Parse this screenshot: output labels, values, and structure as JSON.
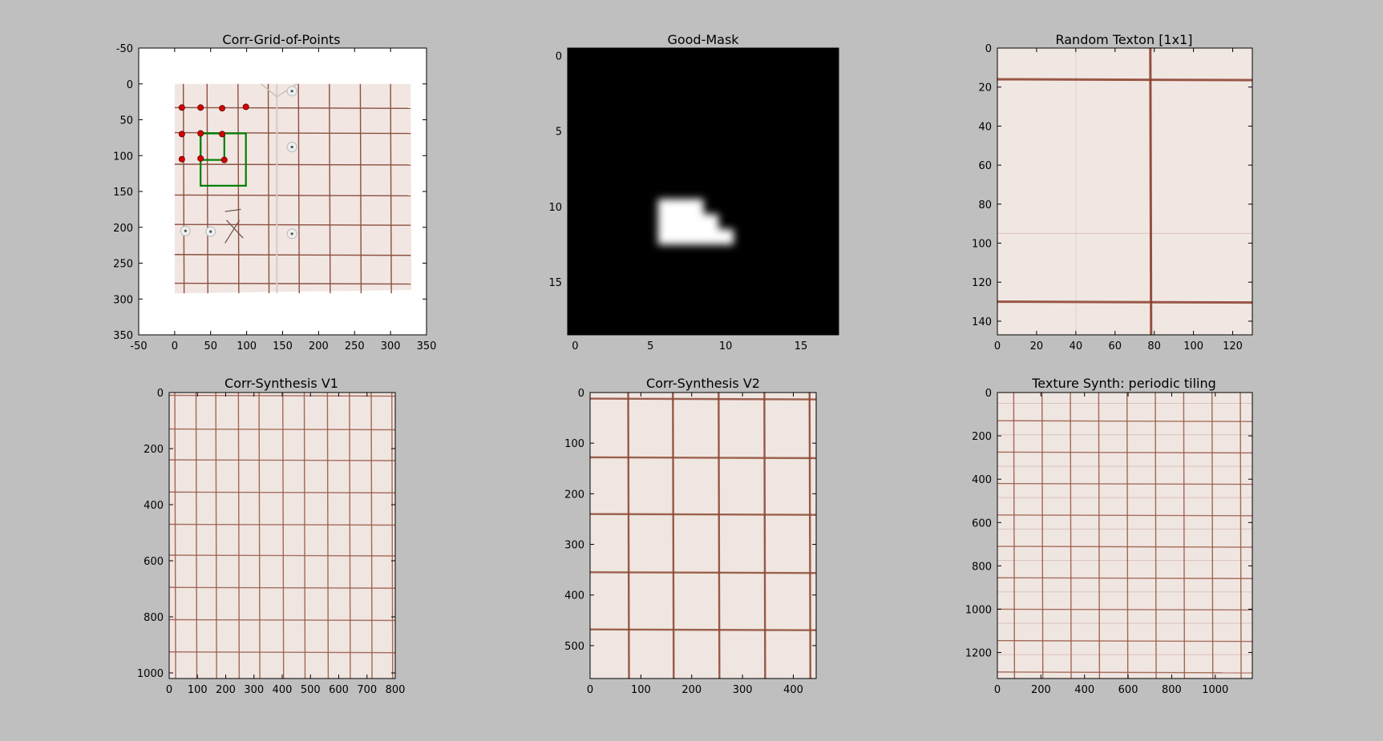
{
  "window": {
    "background": "#bfbfbf"
  },
  "chart_data": [
    {
      "type": "image",
      "title": "Corr-Grid-of-Points",
      "xlim": [
        -50,
        350
      ],
      "ylim": [
        -50,
        350
      ],
      "y_inverted": true,
      "xticks": [
        -50,
        0,
        50,
        100,
        150,
        200,
        250,
        300,
        350
      ],
      "yticks": [
        -50,
        0,
        50,
        100,
        150,
        200,
        250,
        300,
        350
      ],
      "image": {
        "content": "plaid shirt photo",
        "extent_x": [
          0,
          328
        ],
        "extent_y": [
          0,
          292
        ],
        "background": "#f1e6e2",
        "line_color": "#8b5040",
        "grid_lines_x": [
          12,
          45,
          88,
          130,
          172,
          215,
          258,
          300
        ],
        "grid_lines_y": [
          33,
          68,
          112,
          155,
          196,
          238,
          278
        ]
      },
      "points": [
        {
          "x": 10,
          "y": 33
        },
        {
          "x": 36,
          "y": 33
        },
        {
          "x": 66,
          "y": 34
        },
        {
          "x": 99,
          "y": 32
        },
        {
          "x": 10,
          "y": 70
        },
        {
          "x": 36,
          "y": 69
        },
        {
          "x": 66,
          "y": 70
        },
        {
          "x": 10,
          "y": 105
        },
        {
          "x": 36,
          "y": 104
        },
        {
          "x": 69,
          "y": 106
        }
      ],
      "point_color": "#d40000",
      "boxes": [
        {
          "x0": 36,
          "y0": 69,
          "x1": 69,
          "y1": 106
        },
        {
          "x0": 36,
          "y0": 69,
          "x1": 99,
          "y1": 142
        }
      ],
      "box_color": "#008000",
      "buttons": [
        {
          "x": 163,
          "y": 10
        },
        {
          "x": 163,
          "y": 88
        },
        {
          "x": 15,
          "y": 205
        },
        {
          "x": 50,
          "y": 206
        },
        {
          "x": 163,
          "y": 209
        }
      ]
    },
    {
      "type": "heatmap",
      "title": "Good-Mask",
      "xlim": [
        -0.5,
        17.5
      ],
      "ylim": [
        -0.5,
        18.5
      ],
      "y_inverted": true,
      "xticks": [
        0,
        5,
        10,
        15
      ],
      "yticks": [
        0,
        5,
        10,
        15
      ],
      "mask": {
        "colormap": "gray",
        "ones": [
          [
            6,
            10
          ],
          [
            7,
            10
          ],
          [
            8,
            10
          ],
          [
            6,
            11
          ],
          [
            7,
            11
          ],
          [
            8,
            11
          ],
          [
            9,
            11
          ],
          [
            6,
            12
          ],
          [
            7,
            12
          ],
          [
            8,
            12
          ],
          [
            9,
            12
          ],
          [
            10,
            12
          ]
        ]
      }
    },
    {
      "type": "image",
      "title": "Random Texton [1x1]",
      "xlim": [
        0,
        130
      ],
      "ylim": [
        0,
        147
      ],
      "y_inverted": true,
      "xticks": [
        0,
        20,
        40,
        60,
        80,
        100,
        120
      ],
      "yticks": [
        0,
        20,
        40,
        60,
        80,
        100,
        120,
        140
      ],
      "image": {
        "content": "single plaid texton",
        "background": "#f1e7e2",
        "line_color": "#8a3e2c",
        "lines_x": [
          78
        ],
        "lines_y": [
          16,
          130
        ],
        "faint_lines_x": [
          40
        ],
        "faint_lines_y": [
          95
        ]
      }
    },
    {
      "type": "image",
      "title": "Corr-Synthesis V1",
      "xlim": [
        0,
        800
      ],
      "ylim": [
        0,
        1020
      ],
      "y_inverted": true,
      "xticks": [
        0,
        100,
        200,
        300,
        400,
        500,
        600,
        700,
        800
      ],
      "yticks": [
        0,
        200,
        400,
        600,
        800,
        1000
      ],
      "image": {
        "content": "synthesized plaid texture",
        "background": "#f0e6e1",
        "line_color": "#9a5a48",
        "lines_x": [
          20,
          95,
          165,
          245,
          318,
          402,
          478,
          560,
          638,
          715,
          788
        ],
        "lines_y": [
          10,
          130,
          240,
          355,
          470,
          580,
          695,
          810,
          925
        ]
      }
    },
    {
      "type": "image",
      "title": "Corr-Synthesis V2",
      "xlim": [
        0,
        445
      ],
      "ylim": [
        0,
        565
      ],
      "y_inverted": true,
      "xticks": [
        0,
        100,
        200,
        300,
        400
      ],
      "yticks": [
        0,
        100,
        200,
        300,
        400,
        500
      ],
      "image": {
        "content": "synthesized plaid texture",
        "background": "#f0e6e1",
        "line_color": "#8e4a36",
        "lines_x": [
          75,
          163,
          253,
          343,
          432
        ],
        "lines_y": [
          12,
          128,
          240,
          355,
          468
        ]
      }
    },
    {
      "type": "image",
      "title": "Texture Synth: periodic tiling",
      "xlim": [
        0,
        1170
      ],
      "ylim": [
        0,
        1320
      ],
      "y_inverted": true,
      "xticks": [
        0,
        200,
        400,
        600,
        800,
        1000
      ],
      "yticks": [
        0,
        200,
        400,
        600,
        800,
        1000,
        1200
      ],
      "image": {
        "content": "periodically tiled plaid texture",
        "background": "#f0e6e1",
        "line_color": "#9a5a48",
        "lines_x": [
          75,
          205,
          335,
          465,
          595,
          725,
          855,
          985,
          1115
        ],
        "lines_y": [
          130,
          275,
          420,
          565,
          710,
          855,
          1000,
          1145,
          1290
        ],
        "faint_lines_y": [
          50,
          195,
          340,
          485,
          630,
          775,
          920,
          1065,
          1210
        ]
      }
    }
  ]
}
